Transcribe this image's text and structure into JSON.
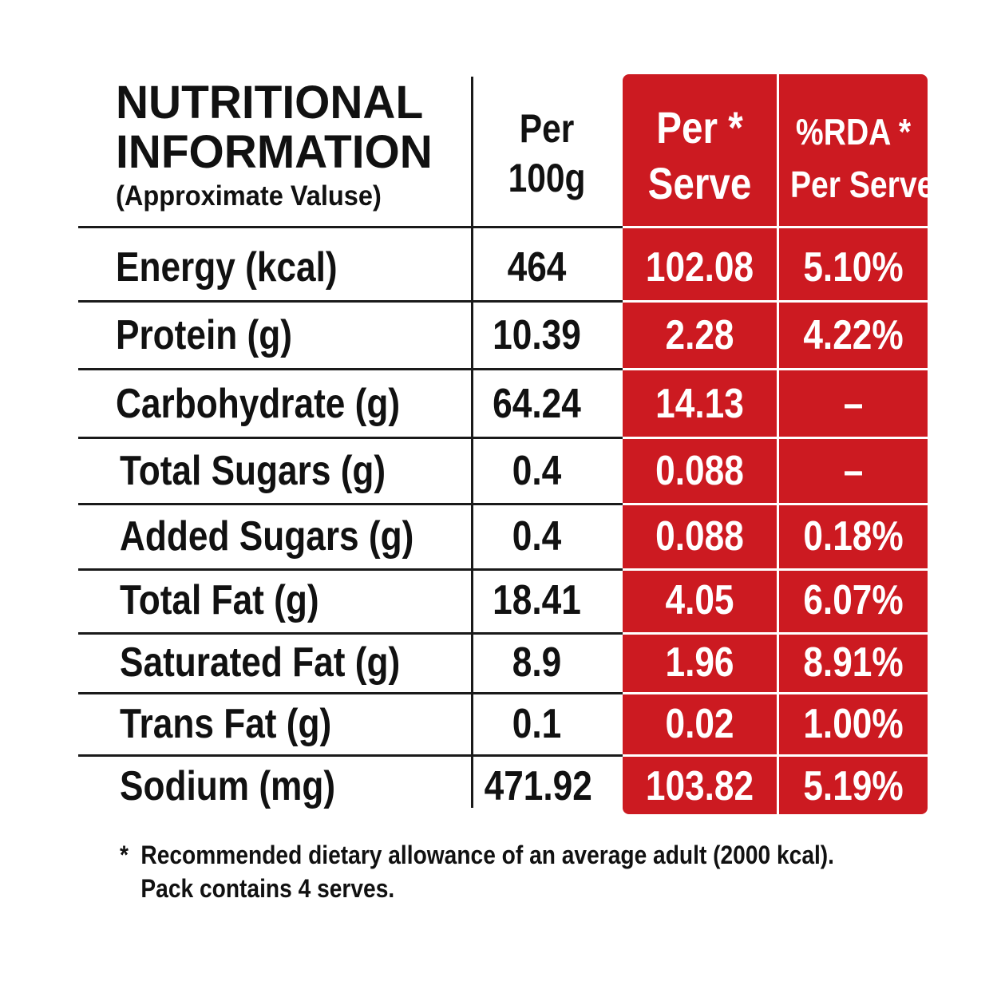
{
  "header": {
    "title_line1": "NUTRITIONAL",
    "title_line2": "INFORMATION",
    "subtitle": "(Approximate Valuse)",
    "col_per100_line1": "Per",
    "col_per100_line2": "100g",
    "col_serve_line1": "Per *",
    "col_serve_line2": "Serve",
    "col_rda_line1": "%RDA *",
    "col_rda_line2": "Per Serve"
  },
  "rows": [
    {
      "label": "Energy (kcal)",
      "per100": "464",
      "serve": "102.08",
      "rda": "5.10%"
    },
    {
      "label": "Protein (g)",
      "per100": "10.39",
      "serve": "2.28",
      "rda": "4.22%"
    },
    {
      "label": "Carbohydrate (g)",
      "per100": "64.24",
      "serve": "14.13",
      "rda": "–"
    },
    {
      "label": "Total Sugars (g)",
      "per100": "0.4",
      "serve": "0.088",
      "rda": "–"
    },
    {
      "label": "Added Sugars (g)",
      "per100": "0.4",
      "serve": "0.088",
      "rda": "0.18%"
    },
    {
      "label": "Total Fat (g)",
      "per100": "18.41",
      "serve": "4.05",
      "rda": "6.07%"
    },
    {
      "label": "Saturated Fat (g)",
      "per100": "8.9",
      "serve": "1.96",
      "rda": "8.91%"
    },
    {
      "label": "Trans Fat (g)",
      "per100": "0.1",
      "serve": "0.02",
      "rda": "1.00%"
    },
    {
      "label": "Sodium (mg)",
      "per100": "471.92",
      "serve": "103.82",
      "rda": "5.19%"
    }
  ],
  "footnote": {
    "star": "*",
    "line1": "Recommended dietary allowance of an average adult (2000 kcal).",
    "line2": "Pack contains 4 serves."
  },
  "colors": {
    "accent_red": "#cc1a21",
    "text": "#111111",
    "on_red": "#ffffff"
  }
}
